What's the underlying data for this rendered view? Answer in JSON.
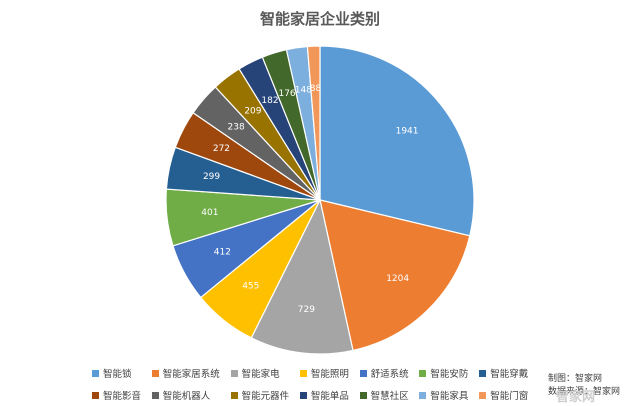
{
  "chart_data": {
    "type": "pie",
    "title": "智能家居企业类别",
    "start_angle_deg": 0,
    "direction": "clockwise",
    "slices": [
      {
        "label": "智能锁",
        "value": 1941,
        "color": "#5B9BD5"
      },
      {
        "label": "智能家居系统",
        "value": 1204,
        "color": "#ED7D31"
      },
      {
        "label": "智能家电",
        "value": 729,
        "color": "#A5A5A5"
      },
      {
        "label": "智能照明",
        "value": 455,
        "color": "#FFC000"
      },
      {
        "label": "舒适系统",
        "value": 412,
        "color": "#4472C4"
      },
      {
        "label": "智能安防",
        "value": 401,
        "color": "#70AD47"
      },
      {
        "label": "智能穿戴",
        "value": 299,
        "color": "#255E91"
      },
      {
        "label": "智能影音",
        "value": 272,
        "color": "#9E480E"
      },
      {
        "label": "智能机器人",
        "value": 238,
        "color": "#636363"
      },
      {
        "label": "智能元器件",
        "value": 209,
        "color": "#997300"
      },
      {
        "label": "智能单品",
        "value": 182,
        "color": "#264478"
      },
      {
        "label": "智慧社区",
        "value": 176,
        "color": "#43682B"
      },
      {
        "label": "智能家具",
        "value": 148,
        "color": "#7CAFDD"
      },
      {
        "label": "智能门窗",
        "value": 88,
        "color": "#F1975A"
      }
    ]
  },
  "footer": {
    "source_line1": "制图：智家网",
    "source_line2": "数据来源：智家网",
    "watermark": "智家网"
  }
}
